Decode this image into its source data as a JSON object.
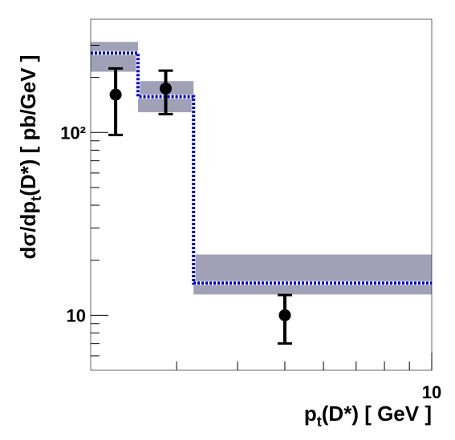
{
  "chart_data": {
    "type": "step-band",
    "ylabel": [
      "dσ/dp",
      "t",
      "(D*) [ pb/GeV ]"
    ],
    "xlabel": [
      "p",
      "t",
      "(D*) [ GeV ]"
    ],
    "xlog": true,
    "ylog": true,
    "xlim": [
      2,
      10
    ],
    "ylim": [
      5,
      400
    ],
    "xticks": [
      10
    ],
    "xminor": [
      3,
      4,
      5,
      6,
      7,
      8,
      9
    ],
    "yticks": [
      10,
      {
        "value": 100,
        "label": "10²"
      }
    ],
    "yminor": [
      6,
      7,
      8,
      9,
      20,
      30,
      40,
      50,
      60,
      70,
      80,
      90,
      200,
      300
    ],
    "theory": {
      "bins": [
        2,
        2.5,
        3.25,
        10
      ],
      "values": [
        272,
        157,
        15
      ],
      "band_low": [
        215,
        129,
        13
      ],
      "band_high": [
        313,
        191,
        21.5
      ],
      "color": "#0000dd",
      "band_color": "#a0a0b6"
    },
    "points": {
      "x": [
        2.25,
        2.85,
        5
      ],
      "values": [
        161,
        174,
        10
      ],
      "low": [
        97,
        126,
        7
      ],
      "high": [
        224,
        218,
        12.9
      ],
      "color": "#000000"
    }
  }
}
